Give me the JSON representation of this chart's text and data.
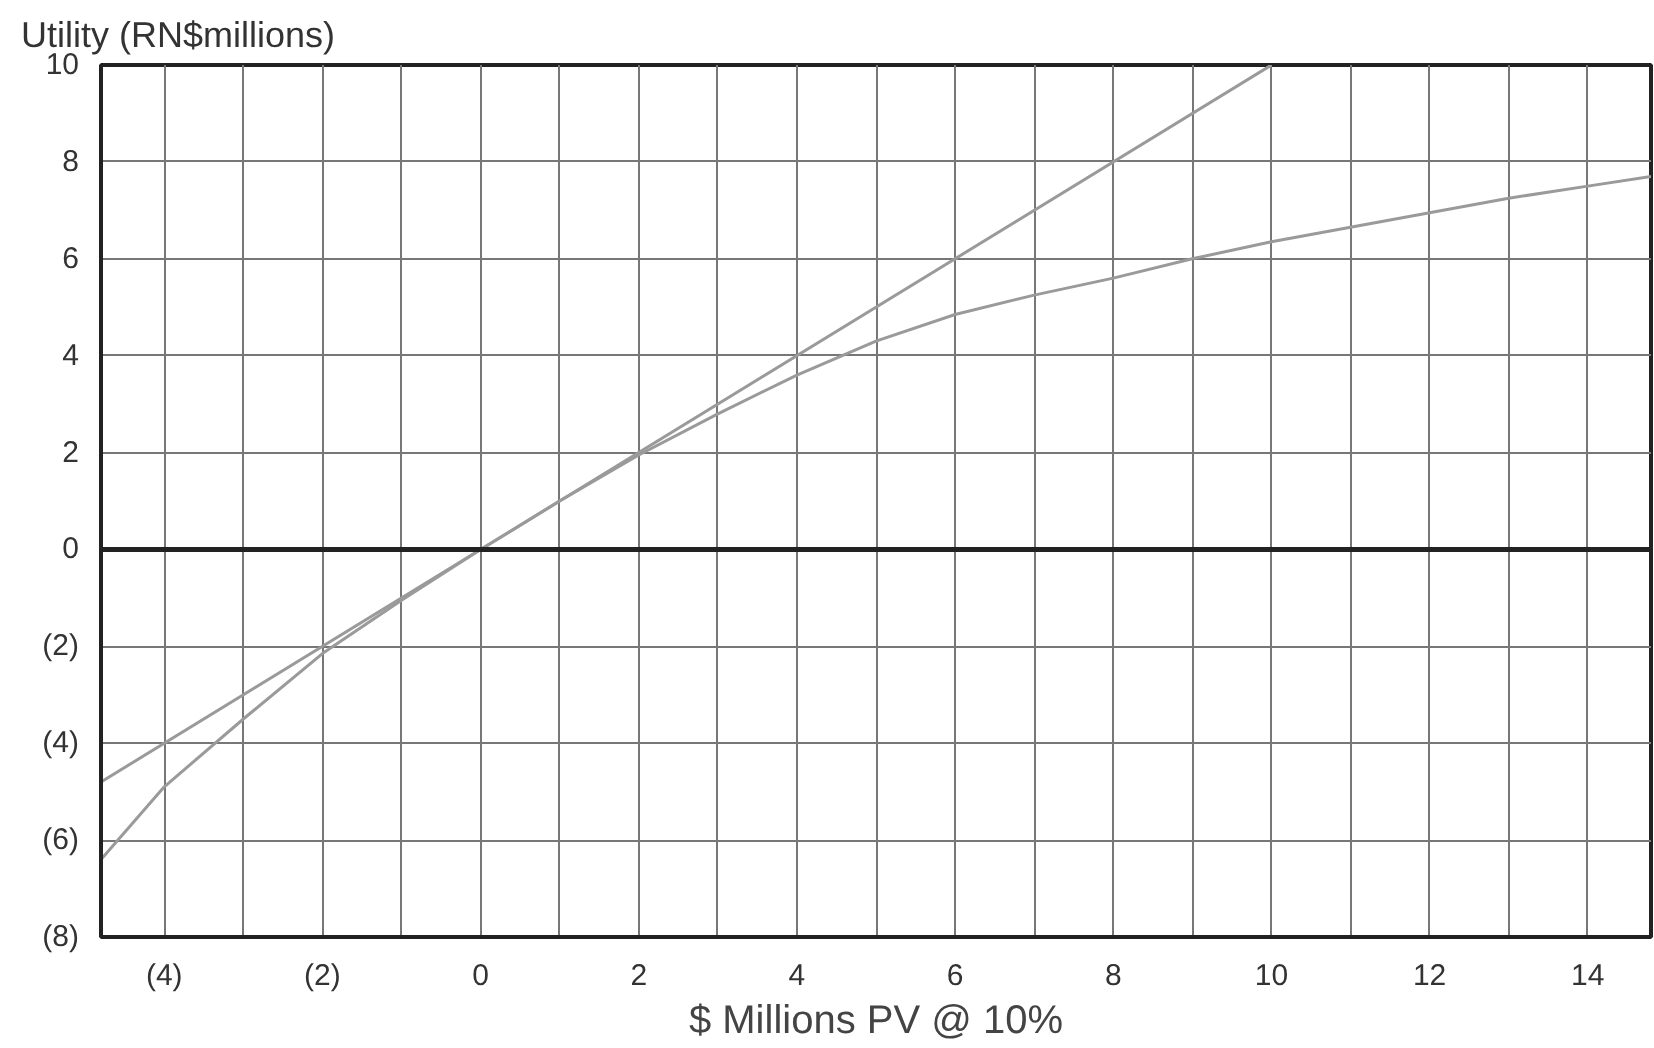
{
  "chart_data": {
    "type": "line",
    "ylabel": "Utility (RN$millions)",
    "xlabel": "$ Millions PV @ 10%",
    "series": [
      {
        "color": "#9a9a9a",
        "x": [
          -4.8,
          0,
          10
        ],
        "values": [
          -4.8,
          0,
          10
        ]
      },
      {
        "color": "#9a9a9a",
        "x": [
          -4.8,
          -4,
          -3,
          -2,
          -1,
          0,
          1,
          2,
          3,
          4,
          5,
          6,
          7,
          8,
          9,
          10,
          11,
          12,
          13,
          14,
          14.8
        ],
        "values": [
          -6.4,
          -4.9,
          -3.5,
          -2.15,
          -1.05,
          0,
          1.0,
          1.95,
          2.8,
          3.6,
          4.3,
          4.85,
          5.25,
          5.6,
          6.0,
          6.35,
          6.65,
          6.95,
          7.25,
          7.5,
          7.7
        ]
      }
    ],
    "xlim": [
      -4.8,
      14.8
    ],
    "ylim": [
      -8,
      10
    ],
    "xticks": [
      {
        "value": -4,
        "label": "(4)"
      },
      {
        "value": -3,
        "label": null
      },
      {
        "value": -2,
        "label": "(2)"
      },
      {
        "value": -1,
        "label": null
      },
      0,
      {
        "value": 1,
        "label": null
      },
      2,
      {
        "value": 3,
        "label": null
      },
      4,
      {
        "value": 5,
        "label": null
      },
      6,
      {
        "value": 7,
        "label": null
      },
      8,
      {
        "value": 9,
        "label": null
      },
      10,
      {
        "value": 11,
        "label": null
      },
      12,
      {
        "value": 13,
        "label": null
      },
      14
    ],
    "yticks": [
      {
        "value": -8,
        "label": "(8)"
      },
      {
        "value": -6,
        "label": "(6)"
      },
      {
        "value": -4,
        "label": "(4)"
      },
      {
        "value": -2,
        "label": "(2)"
      },
      0,
      2,
      4,
      6,
      8,
      10
    ],
    "ref_lines": [
      {
        "axis": "y",
        "value": 0,
        "color": "#222222"
      }
    ],
    "grid": true,
    "marker": "none",
    "line_style": "solid"
  }
}
